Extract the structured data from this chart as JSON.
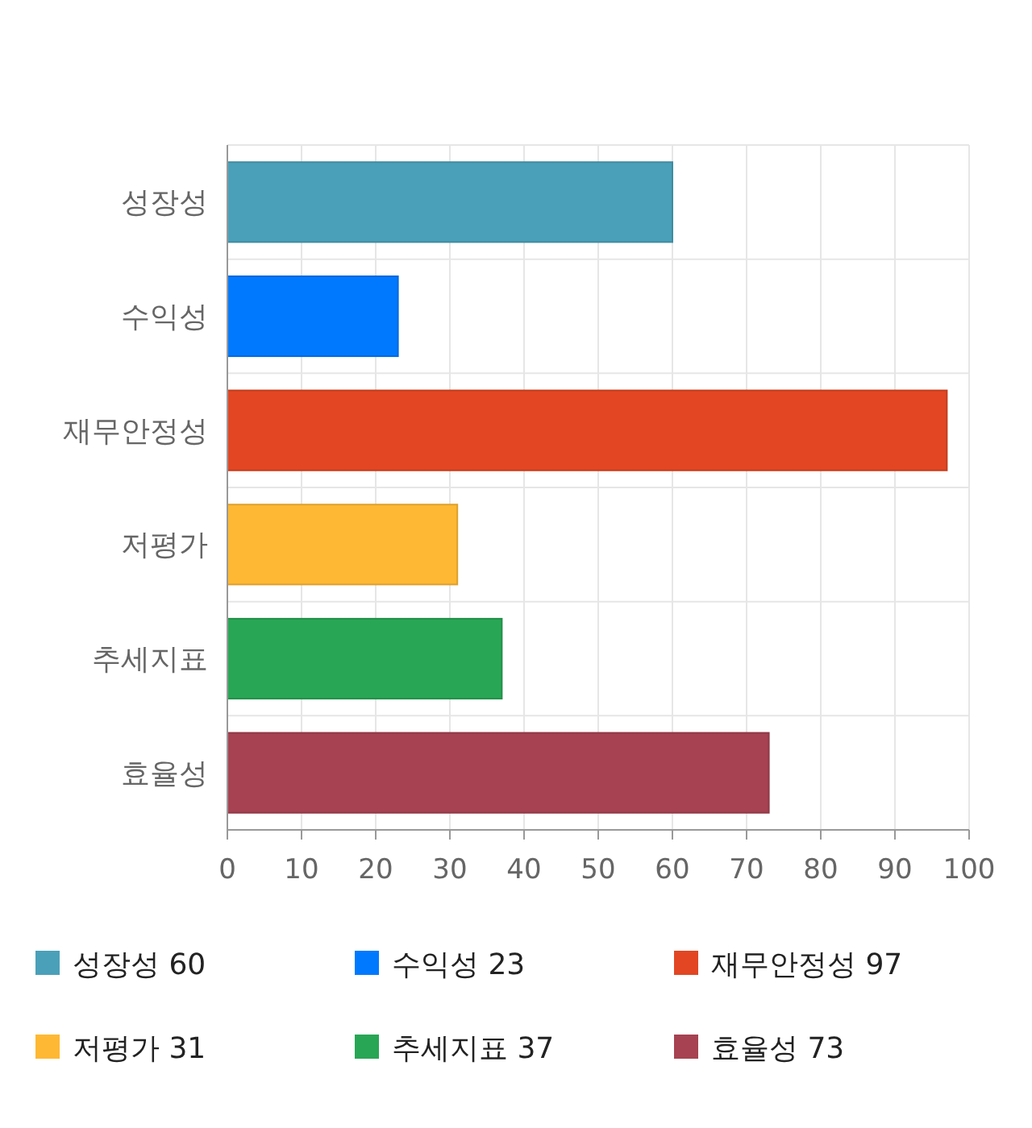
{
  "chart_data": {
    "type": "bar",
    "orientation": "horizontal",
    "stacked": true,
    "categories": [
      "성장성",
      "수익성",
      "재무안정성",
      "저평가",
      "추세지표",
      "효율성"
    ],
    "series": [
      {
        "name": "성장성 60",
        "color": "#4aa0b9",
        "values": [
          60,
          null,
          null,
          null,
          null,
          null
        ]
      },
      {
        "name": "수익성 23",
        "color": "#0079fe",
        "values": [
          null,
          23,
          null,
          null,
          null,
          null
        ]
      },
      {
        "name": "재무안정성 97",
        "color": "#e24623",
        "values": [
          null,
          null,
          97,
          null,
          null,
          null
        ]
      },
      {
        "name": "저평가 31",
        "color": "#ffb833",
        "values": [
          null,
          null,
          null,
          31,
          null,
          null
        ]
      },
      {
        "name": "추세지표 37",
        "color": "#28a655",
        "values": [
          null,
          null,
          null,
          null,
          37,
          null
        ]
      },
      {
        "name": "효율성 73",
        "color": "#a64251",
        "values": [
          null,
          null,
          null,
          null,
          null,
          73
        ]
      }
    ],
    "xlim": [
      0,
      100
    ],
    "xticks": [
      0,
      10,
      20,
      30,
      40,
      50,
      60,
      70,
      80,
      90,
      100
    ],
    "grid": true,
    "legend": "bottom"
  }
}
